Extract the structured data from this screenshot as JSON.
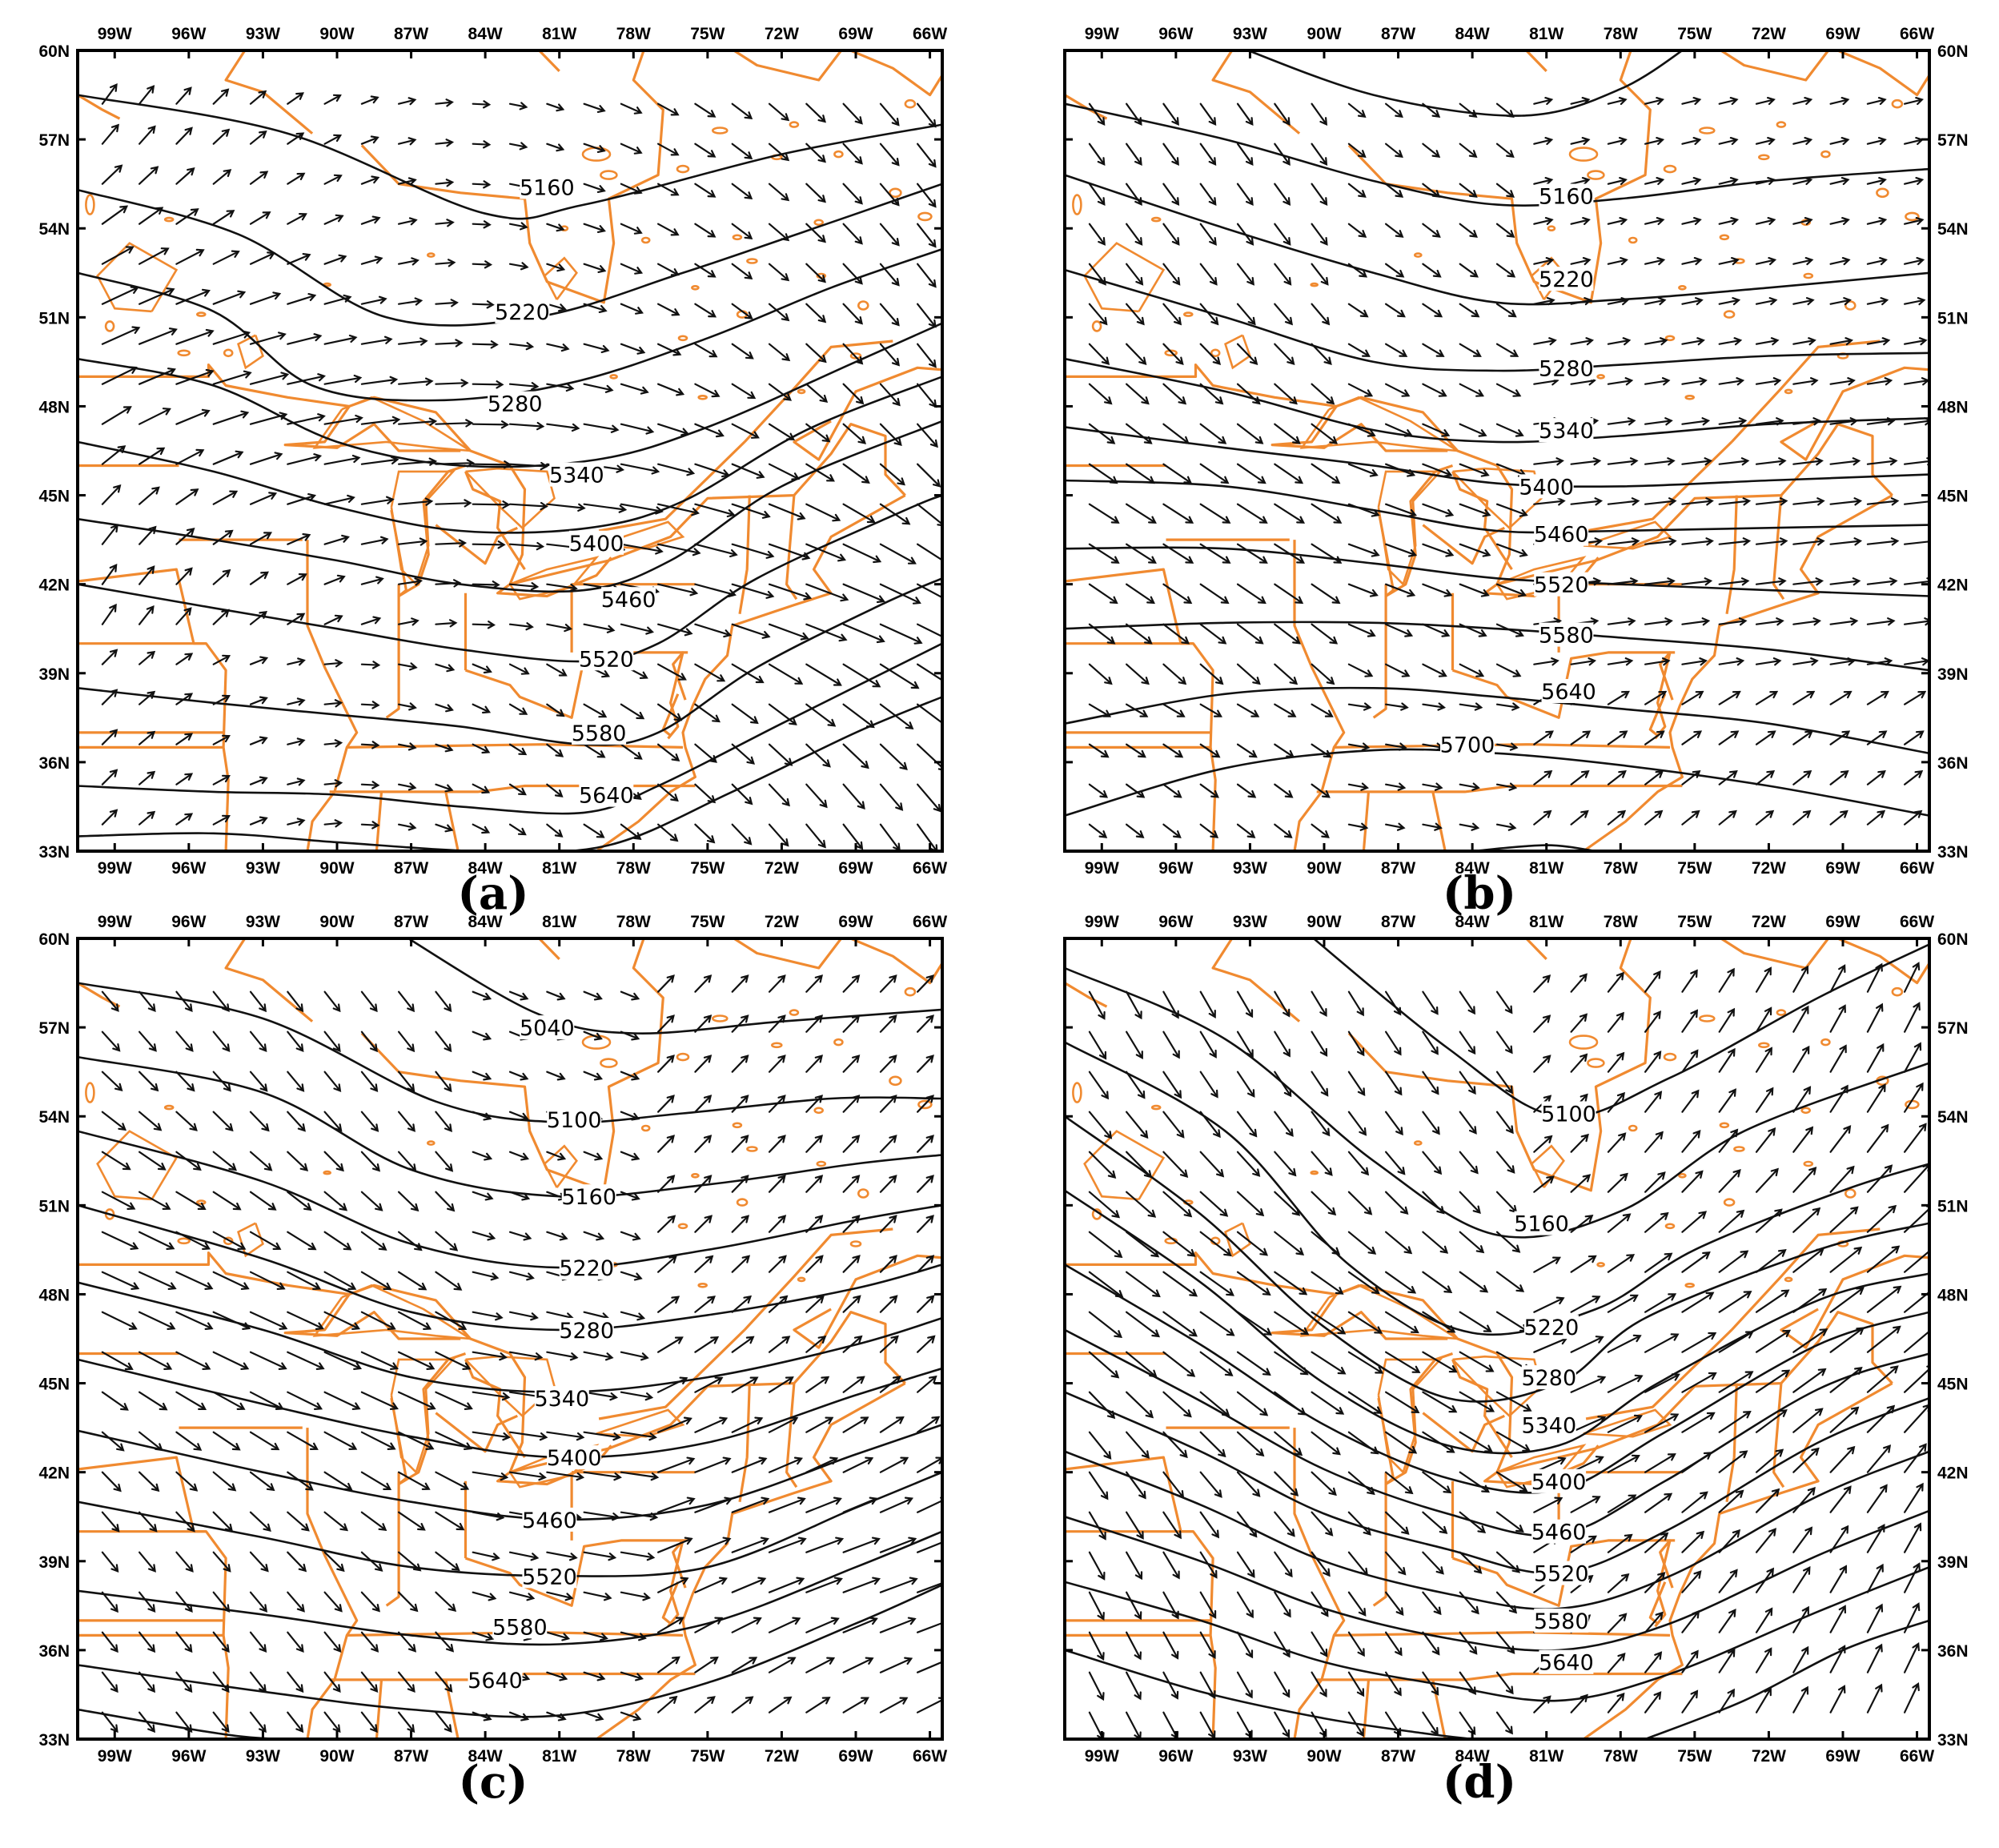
{
  "lon_labels": [
    "99W",
    "96W",
    "93W",
    "90W",
    "87W",
    "84W",
    "81W",
    "78W",
    "75W",
    "72W",
    "69W",
    "66W"
  ],
  "lat_labels": [
    "60N",
    "57N",
    "54N",
    "51N",
    "48N",
    "45N",
    "42N",
    "39N",
    "36N",
    "33N"
  ],
  "colors": {
    "coast": "#f08a30",
    "contour": "#111111",
    "frame": "#000000"
  },
  "panels": [
    {
      "label": "(a)",
      "contour_labels": [
        "5160",
        "5220",
        "5280",
        "5340",
        "5400",
        "5460",
        "5520",
        "5580",
        "5640"
      ],
      "tick_left": true,
      "tick_right": false
    },
    {
      "label": "(b)",
      "contour_labels": [
        "5160",
        "5220",
        "5280",
        "5340",
        "5400",
        "5460",
        "5520",
        "5580",
        "5640",
        "5700"
      ],
      "tick_left": false,
      "tick_right": true
    },
    {
      "label": "(c)",
      "contour_labels": [
        "5040",
        "5100",
        "5160",
        "5220",
        "5280",
        "5340",
        "5400",
        "5460",
        "5520",
        "5580",
        "5640"
      ],
      "tick_left": true,
      "tick_right": false
    },
    {
      "label": "(d)",
      "contour_labels": [
        "5100",
        "5160",
        "5220",
        "5280",
        "5340",
        "5400",
        "5460",
        "5520",
        "5580",
        "5640"
      ],
      "tick_left": false,
      "tick_right": true
    }
  ]
}
